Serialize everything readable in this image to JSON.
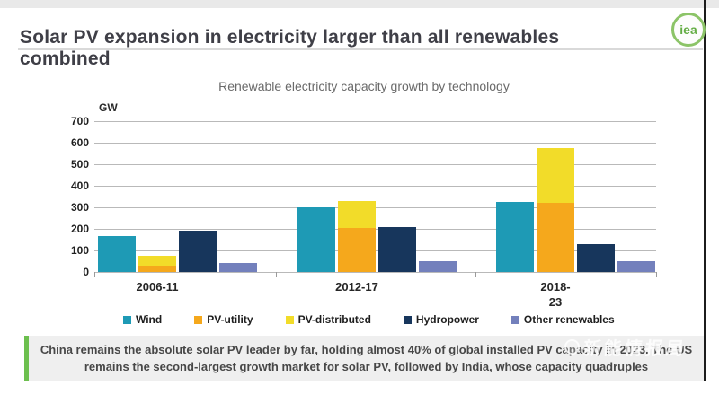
{
  "header": {
    "title": "Solar PV expansion in electricity larger than all renewables combined",
    "logo_text": "iea"
  },
  "colors": {
    "accent_green": "#6cbf4e",
    "logo_green": "#8cc468",
    "logo_text_green": "#64ad45"
  },
  "chart_data": {
    "type": "bar",
    "title": "Renewable electricity capacity growth by technology",
    "unit_label": "GW",
    "ylim": [
      0,
      700
    ],
    "yticks": [
      700,
      600,
      500,
      400,
      300,
      200,
      100,
      0
    ],
    "grid": true,
    "legend_position": "bottom",
    "categories": [
      "2006-11",
      "2012-17",
      "2018-23"
    ],
    "categories_display": [
      [
        "2006-11"
      ],
      [
        "2012-17"
      ],
      [
        "2018-",
        "23"
      ]
    ],
    "series": [
      {
        "name": "Wind",
        "color": "#1e9ab5",
        "stack": null,
        "values": [
          165,
          300,
          325
        ]
      },
      {
        "name": "PV-utility",
        "color": "#f5a81c",
        "stack": "pv",
        "values": [
          30,
          205,
          320
        ]
      },
      {
        "name": "PV-distributed",
        "color": "#f2dc29",
        "stack": "pv",
        "values": [
          45,
          125,
          255
        ]
      },
      {
        "name": "Hydropower",
        "color": "#17365c",
        "stack": null,
        "values": [
          190,
          210,
          130
        ]
      },
      {
        "name": "Other renewables",
        "color": "#7380bc",
        "stack": null,
        "values": [
          40,
          50,
          50
        ]
      }
    ]
  },
  "caption": {
    "line1": "China remains the absolute solar PV leader by far, holding almost 40% of global installed PV capacity in 2023. The US",
    "line2": "remains the second-largest growth market for solar PV, followed by India, whose capacity quadruples"
  },
  "watermark": {
    "text": "新能情报局"
  }
}
